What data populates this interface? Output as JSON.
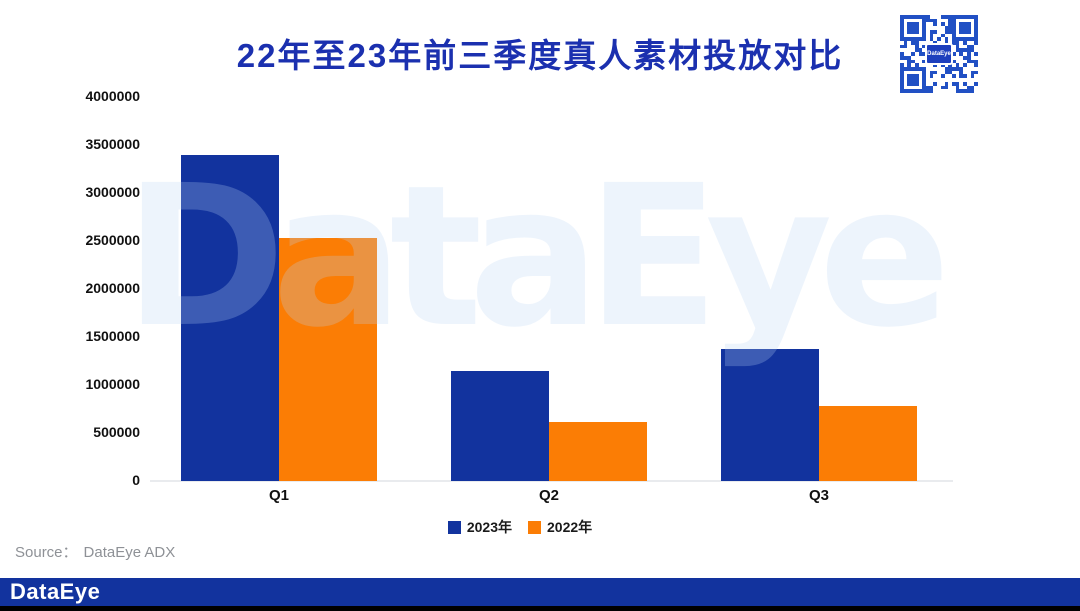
{
  "page_title": "22年至23年前三季度真人素材投放对比",
  "watermark_text": "DataEye",
  "source_label": "Source：",
  "source_value": "DataEye ADX",
  "footer_logo": "DataEye",
  "qr_center_label": "DataEye",
  "colors": {
    "title": "#1b30af",
    "bar_2023": "#12339e",
    "bar_2022": "#fb7d05",
    "footer_bar": "#12339e",
    "qr_blue": "#2150c4",
    "watermark": "#e9f2fb",
    "axis_line": "#e9ebee",
    "source_text": "#8e9196"
  },
  "chart_data": {
    "type": "bar",
    "title": "22年至23年前三季度真人素材投放对比",
    "categories": [
      "Q1",
      "Q2",
      "Q3"
    ],
    "series": [
      {
        "name": "2023年",
        "color": "#12339e",
        "values": [
          3400000,
          1150000,
          1370000
        ]
      },
      {
        "name": "2022年",
        "color": "#fb7d05",
        "values": [
          2530000,
          610000,
          780000
        ]
      }
    ],
    "xlabel": "",
    "ylabel": "",
    "ylim": [
      0,
      4000000
    ],
    "ytick_interval": 500000,
    "yticks": [
      4000000,
      3500000,
      3000000,
      2500000,
      2000000,
      1500000,
      1000000,
      500000,
      0
    ],
    "grid": false,
    "legend_position": "bottom"
  }
}
